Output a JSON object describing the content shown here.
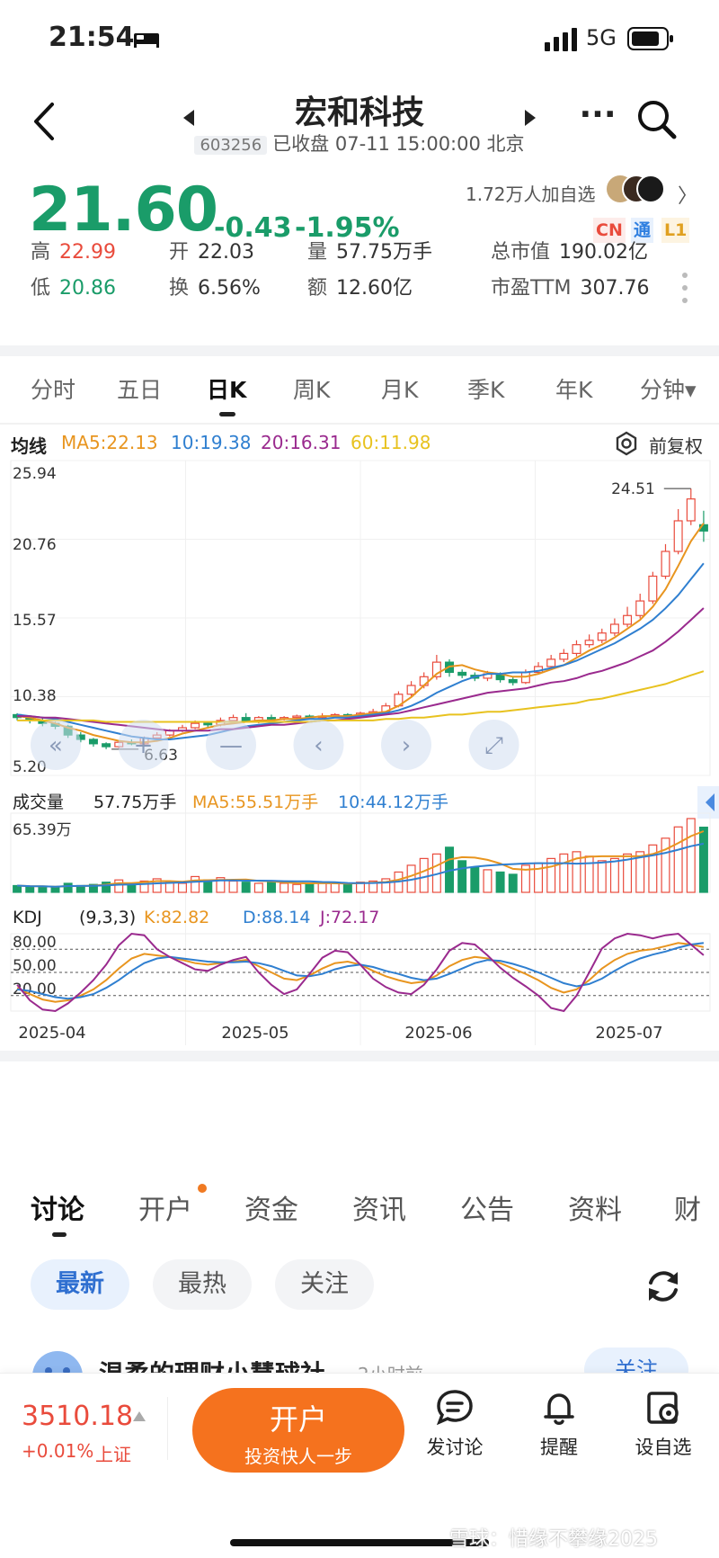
{
  "status_bar": {
    "time": "21:54",
    "network": "5G"
  },
  "header": {
    "title": "宏和科技",
    "code": "603256",
    "status": "已收盘 07-11 15:00:00 北京"
  },
  "quote": {
    "price": "21.60",
    "change": "-0.43",
    "change_pct": "-1.95%",
    "watchers": "1.72万人加自选",
    "badges": [
      "CN",
      "通",
      "L1"
    ],
    "stats": [
      {
        "label": "高",
        "value": "22.99"
      },
      {
        "label": "开",
        "value": "22.03"
      },
      {
        "label": "量",
        "value": "57.75万手"
      },
      {
        "label": "总市值",
        "value": "190.02亿"
      },
      {
        "label": "低",
        "value": "20.86"
      },
      {
        "label": "换",
        "value": "6.56%"
      },
      {
        "label": "额",
        "value": "12.60亿"
      },
      {
        "label": "市盈TTM",
        "value": "307.76"
      }
    ]
  },
  "period_tabs": [
    "分时",
    "五日",
    "日K",
    "周K",
    "月K",
    "季K",
    "年K",
    "分钟▾"
  ],
  "active_period": "日K",
  "ma_bar": {
    "label": "均线",
    "ma5": "MA5:22.13",
    "ma10": "10:19.38",
    "ma20": "20:16.31",
    "ma60": "60:11.98",
    "adjust": "前复权"
  },
  "colors": {
    "up": "#e94b3c",
    "down": "#1a9c69",
    "ma5": "#e8951f",
    "ma10": "#2f7fd0",
    "ma20": "#9a2a8e",
    "ma60": "#e8c21f",
    "accent": "#f5721e"
  },
  "chart_data": [
    {
      "type": "candlestick",
      "title": "日K",
      "y_ticks": [
        "25.94",
        "20.76",
        "15.57",
        "10.38",
        "5.20"
      ],
      "ylim": [
        5.2,
        25.94
      ],
      "annotations": [
        "24.51",
        "6.63"
      ],
      "series": [
        {
          "name": "MA5",
          "values": [
            8.9,
            8.8,
            8.6,
            8.4,
            8.1,
            7.9,
            7.6,
            7.4,
            7.2,
            7.1,
            7.1,
            7.2,
            7.4,
            7.7,
            7.9,
            8.1,
            8.3,
            8.4,
            8.5,
            8.6,
            8.6,
            8.7,
            8.7,
            8.8,
            8.9,
            8.9,
            8.9,
            9.0,
            9.1,
            9.2,
            9.6,
            10.2,
            11.0,
            11.8,
            12.3,
            12.4,
            12.1,
            11.9,
            11.8,
            11.6,
            11.6,
            11.8,
            12.1,
            12.4,
            12.9,
            13.4,
            13.8,
            14.3,
            14.9,
            15.5,
            16.4,
            17.6,
            19.2,
            20.9,
            22.13
          ]
        },
        {
          "name": "MA10",
          "values": [
            9.0,
            8.9,
            8.8,
            8.7,
            8.5,
            8.3,
            8.1,
            7.9,
            7.7,
            7.5,
            7.4,
            7.3,
            7.3,
            7.4,
            7.5,
            7.6,
            7.8,
            8.0,
            8.2,
            8.3,
            8.4,
            8.5,
            8.6,
            8.7,
            8.7,
            8.8,
            8.8,
            8.9,
            9.0,
            9.1,
            9.3,
            9.6,
            10.0,
            10.5,
            10.9,
            11.3,
            11.6,
            11.8,
            11.8,
            11.9,
            11.9,
            12.0,
            12.2,
            12.4,
            12.7,
            13.1,
            13.5,
            13.9,
            14.4,
            14.9,
            15.5,
            16.3,
            17.2,
            18.3,
            19.38
          ]
        },
        {
          "name": "MA20",
          "values": [
            8.9,
            8.9,
            8.8,
            8.8,
            8.7,
            8.6,
            8.5,
            8.4,
            8.3,
            8.2,
            8.1,
            8.0,
            7.9,
            7.9,
            7.9,
            7.9,
            8.0,
            8.0,
            8.1,
            8.2,
            8.3,
            8.3,
            8.4,
            8.5,
            8.6,
            8.6,
            8.7,
            8.8,
            8.9,
            9.0,
            9.1,
            9.3,
            9.5,
            9.7,
            9.9,
            10.1,
            10.3,
            10.5,
            10.6,
            10.7,
            10.8,
            11.0,
            11.2,
            11.3,
            11.5,
            11.8,
            12.0,
            12.3,
            12.6,
            13.0,
            13.4,
            14.0,
            14.7,
            15.5,
            16.31
          ]
        },
        {
          "name": "MA60",
          "values": [
            8.6,
            8.6,
            8.6,
            8.6,
            8.6,
            8.6,
            8.6,
            8.5,
            8.5,
            8.5,
            8.5,
            8.5,
            8.5,
            8.5,
            8.5,
            8.5,
            8.5,
            8.5,
            8.5,
            8.5,
            8.5,
            8.5,
            8.5,
            8.5,
            8.6,
            8.6,
            8.6,
            8.6,
            8.6,
            8.7,
            8.7,
            8.8,
            8.8,
            8.9,
            9.0,
            9.0,
            9.1,
            9.2,
            9.2,
            9.3,
            9.4,
            9.5,
            9.6,
            9.7,
            9.8,
            10.0,
            10.1,
            10.3,
            10.5,
            10.7,
            10.9,
            11.1,
            11.4,
            11.7,
            11.98
          ]
        }
      ],
      "candles": [
        [
          9.0,
          8.8,
          9.1,
          8.6
        ],
        [
          8.8,
          8.6,
          8.9,
          8.4
        ],
        [
          8.6,
          8.4,
          8.8,
          8.2
        ],
        [
          8.4,
          8.2,
          8.5,
          8.0
        ],
        [
          8.2,
          7.6,
          8.3,
          7.4
        ],
        [
          7.6,
          7.3,
          7.8,
          7.1
        ],
        [
          7.3,
          7.0,
          7.4,
          6.8
        ],
        [
          7.0,
          6.8,
          7.1,
          6.63
        ],
        [
          6.8,
          7.1,
          7.2,
          6.7
        ],
        [
          7.1,
          7.0,
          7.3,
          6.9
        ],
        [
          7.0,
          7.4,
          7.5,
          6.9
        ],
        [
          7.4,
          7.6,
          7.8,
          7.3
        ],
        [
          7.6,
          7.9,
          8.0,
          7.5
        ],
        [
          7.9,
          8.1,
          8.3,
          7.8
        ],
        [
          8.1,
          8.4,
          8.6,
          8.0
        ],
        [
          8.4,
          8.3,
          8.5,
          8.1
        ],
        [
          8.3,
          8.6,
          8.8,
          8.2
        ],
        [
          8.6,
          8.8,
          9.0,
          8.5
        ],
        [
          8.8,
          8.6,
          9.1,
          8.5
        ],
        [
          8.6,
          8.8,
          8.9,
          8.4
        ],
        [
          8.8,
          8.7,
          9.0,
          8.6
        ],
        [
          8.7,
          8.8,
          8.9,
          8.6
        ],
        [
          8.8,
          8.9,
          9.0,
          8.7
        ],
        [
          8.9,
          8.8,
          9.0,
          8.7
        ],
        [
          8.8,
          8.9,
          9.1,
          8.7
        ],
        [
          8.9,
          9.0,
          9.1,
          8.8
        ],
        [
          9.0,
          8.9,
          9.1,
          8.8
        ],
        [
          8.9,
          9.1,
          9.2,
          8.8
        ],
        [
          9.1,
          9.2,
          9.4,
          9.0
        ],
        [
          9.2,
          9.6,
          9.8,
          9.1
        ],
        [
          9.6,
          10.4,
          10.6,
          9.5
        ],
        [
          10.4,
          11.0,
          11.3,
          10.2
        ],
        [
          11.0,
          11.6,
          11.9,
          10.8
        ],
        [
          11.6,
          12.6,
          13.1,
          11.4
        ],
        [
          12.6,
          11.9,
          12.8,
          11.6
        ],
        [
          11.9,
          11.7,
          12.1,
          11.5
        ],
        [
          11.7,
          11.5,
          11.9,
          11.3
        ],
        [
          11.5,
          11.8,
          12.0,
          11.3
        ],
        [
          11.8,
          11.4,
          11.9,
          11.2
        ],
        [
          11.4,
          11.2,
          11.6,
          11.0
        ],
        [
          11.2,
          11.9,
          12.1,
          11.1
        ],
        [
          11.9,
          12.3,
          12.6,
          11.8
        ],
        [
          12.3,
          12.8,
          13.1,
          12.2
        ],
        [
          12.8,
          13.2,
          13.5,
          12.6
        ],
        [
          13.2,
          13.8,
          14.1,
          13.0
        ],
        [
          13.8,
          14.1,
          14.5,
          13.6
        ],
        [
          14.1,
          14.6,
          14.9,
          13.9
        ],
        [
          14.6,
          15.2,
          15.6,
          14.4
        ],
        [
          15.2,
          15.8,
          16.4,
          15.0
        ],
        [
          15.8,
          16.8,
          17.3,
          15.6
        ],
        [
          16.8,
          18.5,
          18.8,
          16.6
        ],
        [
          18.5,
          20.2,
          20.7,
          18.3
        ],
        [
          20.2,
          22.3,
          23.1,
          20.0
        ],
        [
          22.3,
          23.8,
          24.51,
          22.0
        ],
        [
          22.03,
          21.6,
          22.99,
          20.86
        ]
      ]
    },
    {
      "type": "bar",
      "title": "成交量",
      "current": "57.75万手",
      "ma5": "MA5:55.51万手",
      "ma10": "10:44.12万手",
      "y_max_label": "65.39万",
      "values": [
        6,
        5,
        5,
        4,
        8,
        6,
        7,
        9,
        11,
        8,
        10,
        12,
        9,
        8,
        14,
        11,
        13,
        10,
        9,
        8,
        9,
        8,
        7,
        8,
        9,
        8,
        7,
        9,
        10,
        12,
        18,
        24,
        30,
        34,
        40,
        28,
        22,
        20,
        18,
        16,
        24,
        26,
        30,
        34,
        36,
        32,
        28,
        30,
        34,
        36,
        42,
        48,
        58,
        65.39,
        57.75
      ]
    },
    {
      "type": "line",
      "title": "KDJ",
      "params": "(9,3,3)",
      "k_label": "K:82.82",
      "d_label": "D:88.14",
      "j_label": "J:72.17",
      "y_ticks": [
        "80.00",
        "50.00",
        "20.00"
      ],
      "ylim": [
        0,
        100
      ],
      "x_ticks": [
        "2025-04",
        "2025-05",
        "2025-06",
        "2025-07"
      ],
      "series": [
        {
          "name": "K",
          "values": [
            30,
            22,
            15,
            12,
            14,
            20,
            28,
            40,
            55,
            68,
            74,
            72,
            70,
            66,
            62,
            60,
            62,
            64,
            66,
            58,
            50,
            42,
            40,
            46,
            55,
            62,
            64,
            60,
            52,
            45,
            40,
            36,
            38,
            46,
            58,
            66,
            70,
            68,
            62,
            55,
            48,
            40,
            30,
            24,
            28,
            40,
            55,
            66,
            74,
            78,
            80,
            84,
            88,
            86,
            82.82
          ]
        },
        {
          "name": "D",
          "values": [
            28,
            26,
            22,
            18,
            16,
            18,
            22,
            30,
            40,
            52,
            62,
            68,
            70,
            68,
            66,
            64,
            63,
            63,
            64,
            62,
            58,
            52,
            46,
            45,
            48,
            54,
            58,
            60,
            57,
            52,
            48,
            43,
            40,
            42,
            48,
            55,
            62,
            66,
            65,
            61,
            56,
            50,
            43,
            36,
            32,
            35,
            42,
            52,
            61,
            68,
            73,
            77,
            82,
            86,
            88.14
          ]
        },
        {
          "name": "J",
          "values": [
            34,
            14,
            2,
            0,
            10,
            24,
            40,
            60,
            85,
            100,
            98,
            80,
            70,
            62,
            54,
            52,
            60,
            66,
            70,
            50,
            34,
            22,
            28,
            48,
            69,
            78,
            76,
            60,
            42,
            31,
            24,
            22,
            34,
            54,
            78,
            88,
            86,
            72,
            56,
            43,
            32,
            20,
            4,
            0,
            20,
            50,
            81,
            94,
            100,
            98,
            94,
            98,
            100,
            86,
            72.17
          ]
        }
      ]
    }
  ],
  "content_tabs": [
    "讨论",
    "开户",
    "资金",
    "资讯",
    "公告",
    "资料",
    "财"
  ],
  "filters": [
    "最新",
    "最热",
    "关注"
  ],
  "peek": {
    "name": "温柔的理财小慧球社",
    "time": "2小时前",
    "follow": "关注"
  },
  "footer": {
    "index_value": "3510.18",
    "index_change": "+0.01%",
    "index_name": "上证",
    "open_button": "开户",
    "open_sub": "投资快人一步",
    "actions": [
      "发讨论",
      "提醒",
      "设自选"
    ]
  },
  "watermark": "雪球：惜缘不攀缘2025"
}
